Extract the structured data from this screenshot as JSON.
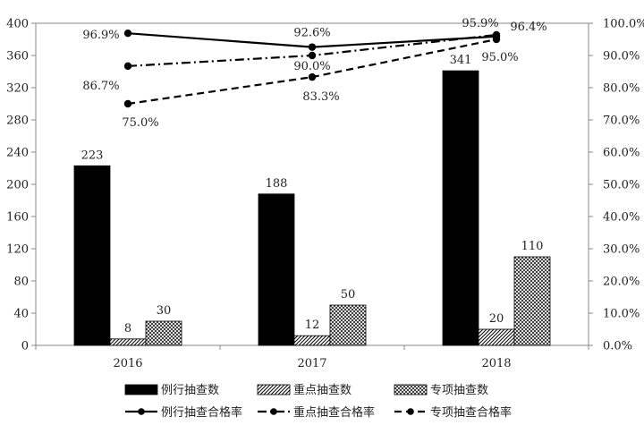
{
  "chart_data": {
    "type": "bar",
    "categories": [
      "2016",
      "2017",
      "2018"
    ],
    "y_left": {
      "lim": [
        0,
        400
      ],
      "ticks": [
        "0",
        "40",
        "80",
        "120",
        "160",
        "200",
        "240",
        "280",
        "320",
        "360",
        "400"
      ]
    },
    "y_right": {
      "lim": [
        0,
        100
      ],
      "ticks": [
        "0.0%",
        "10.0%",
        "20.0%",
        "30.0%",
        "40.0%",
        "50.0%",
        "60.0%",
        "70.0%",
        "80.0%",
        "90.0%",
        "100.0%"
      ]
    },
    "bar_series": [
      {
        "name": "例行抽查数",
        "values": [
          223,
          188,
          341
        ],
        "labels": [
          "223",
          "188",
          "341"
        ],
        "fill": "solid-black"
      },
      {
        "name": "重点抽查数",
        "values": [
          8,
          12,
          20
        ],
        "labels": [
          "8",
          "12",
          "20"
        ],
        "fill": "diagonal-hatch"
      },
      {
        "name": "专项抽查数",
        "values": [
          30,
          50,
          110
        ],
        "labels": [
          "30",
          "50",
          "110"
        ],
        "fill": "cross-hatch"
      }
    ],
    "line_series": [
      {
        "name": "例行抽查合格率",
        "values": [
          96.9,
          92.6,
          95.9
        ],
        "labels": [
          "96.9%",
          "92.6%",
          "95.9%"
        ],
        "style": "solid"
      },
      {
        "name": "重点抽查合格率",
        "values": [
          86.7,
          90.0,
          96.4
        ],
        "labels": [
          "86.7%",
          "90.0%",
          "96.4%"
        ],
        "style": "dash-dot"
      },
      {
        "name": "专项抽查合格率",
        "values": [
          75.0,
          83.3,
          95.0
        ],
        "labels": [
          "75.0%",
          "83.3%",
          "95.0%"
        ],
        "style": "dashed"
      }
    ],
    "grid": false,
    "legend": "bottom",
    "colors": {
      "ink": "#000000",
      "axis": "#888888",
      "text": "#222222"
    }
  }
}
